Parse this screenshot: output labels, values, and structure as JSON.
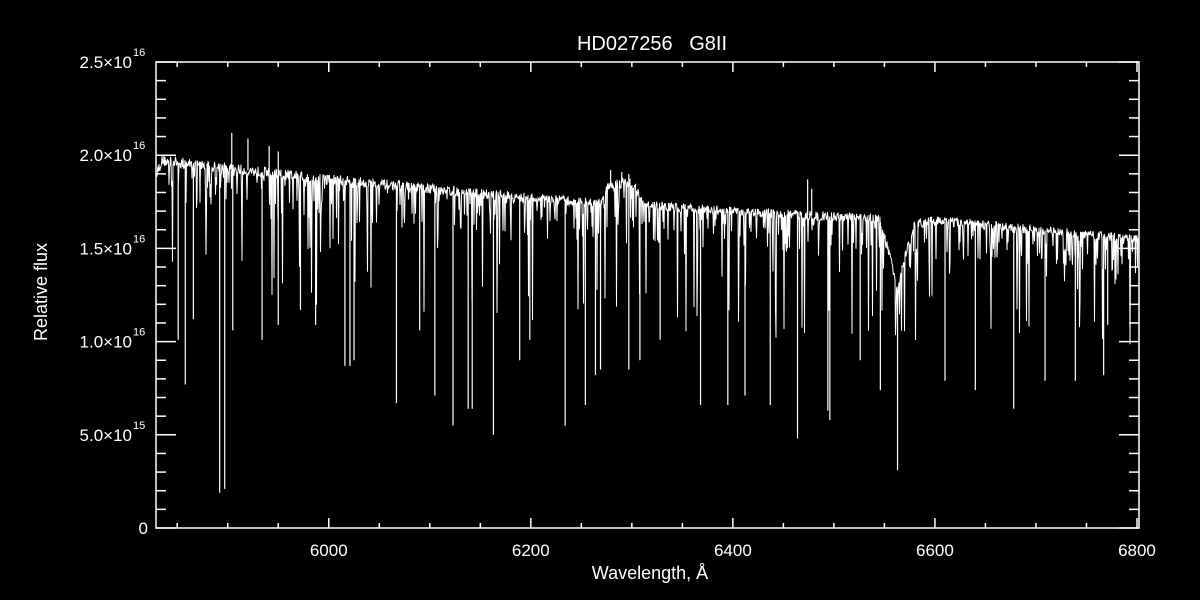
{
  "chart_data": {
    "type": "line",
    "title": "HD027256   G8II",
    "xlabel": "Wavelength, Å",
    "ylabel": "Relative flux",
    "xlim": [
      5829,
      6802
    ],
    "ylim": [
      0,
      2.5e+16
    ],
    "x_ticks": [
      6000,
      6200,
      6400,
      6600,
      6800
    ],
    "x_tick_labels": [
      "6000",
      "6200",
      "6400",
      "6600",
      "6800"
    ],
    "x_minor_step": 50,
    "y_ticks": [
      0,
      5000000000000000.0,
      1e+16,
      1.5e+16,
      2e+16,
      2.5e+16
    ],
    "y_tick_labels": [
      {
        "mantissa": "0",
        "exp": ""
      },
      {
        "mantissa": "5.0×10",
        "exp": "15"
      },
      {
        "mantissa": "1.0×10",
        "exp": "16"
      },
      {
        "mantissa": "1.5×10",
        "exp": "16"
      },
      {
        "mantissa": "2.0×10",
        "exp": "16"
      },
      {
        "mantissa": "2.5×10",
        "exp": "16"
      }
    ],
    "y_minor_step": 1000000000000000.0,
    "grid": false,
    "colors": {
      "background": "#000000",
      "line": "#ffffff",
      "axes": "#ffffff"
    },
    "continuum": [
      [
        5829,
        1.9e+16
      ],
      [
        5835,
        1.97e+16
      ],
      [
        5900,
        1.93e+16
      ],
      [
        6000,
        1.87e+16
      ],
      [
        6100,
        1.82e+16
      ],
      [
        6200,
        1.77e+16
      ],
      [
        6270,
        1.74e+16
      ],
      [
        6276,
        1.84e+16
      ],
      [
        6300,
        1.86e+16
      ],
      [
        6312,
        1.73e+16
      ],
      [
        6400,
        1.7e+16
      ],
      [
        6500,
        1.67e+16
      ],
      [
        6545,
        1.66e+16
      ],
      [
        6556,
        1.45e+16
      ],
      [
        6563,
        1.28e+16
      ],
      [
        6570,
        1.45e+16
      ],
      [
        6580,
        1.63e+16
      ],
      [
        6600,
        1.65e+16
      ],
      [
        6700,
        1.6e+16
      ],
      [
        6802,
        1.55e+16
      ]
    ],
    "absorption_lines": [
      [
        5851,
        1.01e+16
      ],
      [
        5858,
        7700000000000000.0
      ],
      [
        5866,
        1.12e+16
      ],
      [
        5892,
        1900000000000000.0
      ],
      [
        5897,
        2100000000000000.0
      ],
      [
        5905,
        1.06e+16
      ],
      [
        5934,
        1.01e+16
      ],
      [
        5950,
        1.09e+16
      ],
      [
        5972,
        1.17e+16
      ],
      [
        5987,
        1.09e+16
      ],
      [
        6016,
        8700000000000000.0
      ],
      [
        6021,
        8700000000000000.0
      ],
      [
        6025,
        9000000000000000.0
      ],
      [
        6067,
        6700000000000000.0
      ],
      [
        6090,
        1.06e+16
      ],
      [
        6105,
        7100000000000000.0
      ],
      [
        6123,
        5500000000000000.0
      ],
      [
        6138,
        6400000000000000.0
      ],
      [
        6142,
        6400000000000000.0
      ],
      [
        6163,
        5000000000000000.0
      ],
      [
        6189,
        9000000000000000.0
      ],
      [
        6199,
        1.01e+16
      ],
      [
        6234,
        5500000000000000.0
      ],
      [
        6254,
        6600000000000000.0
      ],
      [
        6264,
        8200000000000000.0
      ],
      [
        6269,
        8500000000000000.0
      ],
      [
        6297,
        8500000000000000.0
      ],
      [
        6308,
        9000000000000000.0
      ],
      [
        6328,
        1.01e+16
      ],
      [
        6368,
        6600000000000000.0
      ],
      [
        6395,
        6600000000000000.0
      ],
      [
        6412,
        7100000000000000.0
      ],
      [
        6437,
        6600000000000000.0
      ],
      [
        6464,
        4800000000000000.0
      ],
      [
        6494,
        6300000000000000.0
      ],
      [
        6496,
        5800000000000000.0
      ],
      [
        6526,
        9000000000000000.0
      ],
      [
        6546,
        7400000000000000.0
      ],
      [
        6563,
        3100000000000000.0
      ],
      [
        6610,
        7900000000000000.0
      ],
      [
        6640,
        7400000000000000.0
      ],
      [
        6678,
        6400000000000000.0
      ],
      [
        6709,
        7900000000000000.0
      ],
      [
        6739,
        7900000000000000.0
      ],
      [
        6767,
        8200000000000000.0
      ],
      [
        6771,
        1.09e+16
      ]
    ],
    "emission_spikes": [
      [
        5904,
        2.12e+16
      ],
      [
        5920,
        2.09e+16
      ],
      [
        5941,
        2.05e+16
      ],
      [
        5950,
        2.02e+16
      ],
      [
        6279,
        1.92e+16
      ],
      [
        6290,
        1.91e+16
      ],
      [
        6297,
        1.9e+16
      ],
      [
        6474,
        1.87e+16
      ],
      [
        6478,
        1.82e+16
      ]
    ]
  }
}
